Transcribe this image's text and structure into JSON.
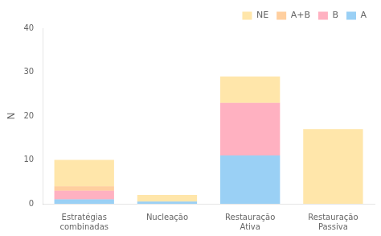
{
  "chart_data": {
    "type": "bar",
    "stacked": true,
    "categories": [
      "Estratégias\ncombinadas",
      "Nucleação",
      "Restauração\nAtiva",
      "Restauração\nPassiva"
    ],
    "series": [
      {
        "name": "A",
        "values": [
          1,
          0.5,
          11,
          0
        ]
      },
      {
        "name": "B",
        "values": [
          2,
          0,
          12,
          0
        ]
      },
      {
        "name": "A+B",
        "values": [
          1,
          0,
          0,
          0
        ]
      },
      {
        "name": "NE",
        "values": [
          6,
          1.5,
          6,
          17
        ]
      }
    ],
    "ylabel": "N",
    "ylim": [
      0,
      40
    ],
    "yticks": [
      0,
      10,
      20,
      30,
      40
    ],
    "grid": false,
    "legend": "upper right"
  }
}
